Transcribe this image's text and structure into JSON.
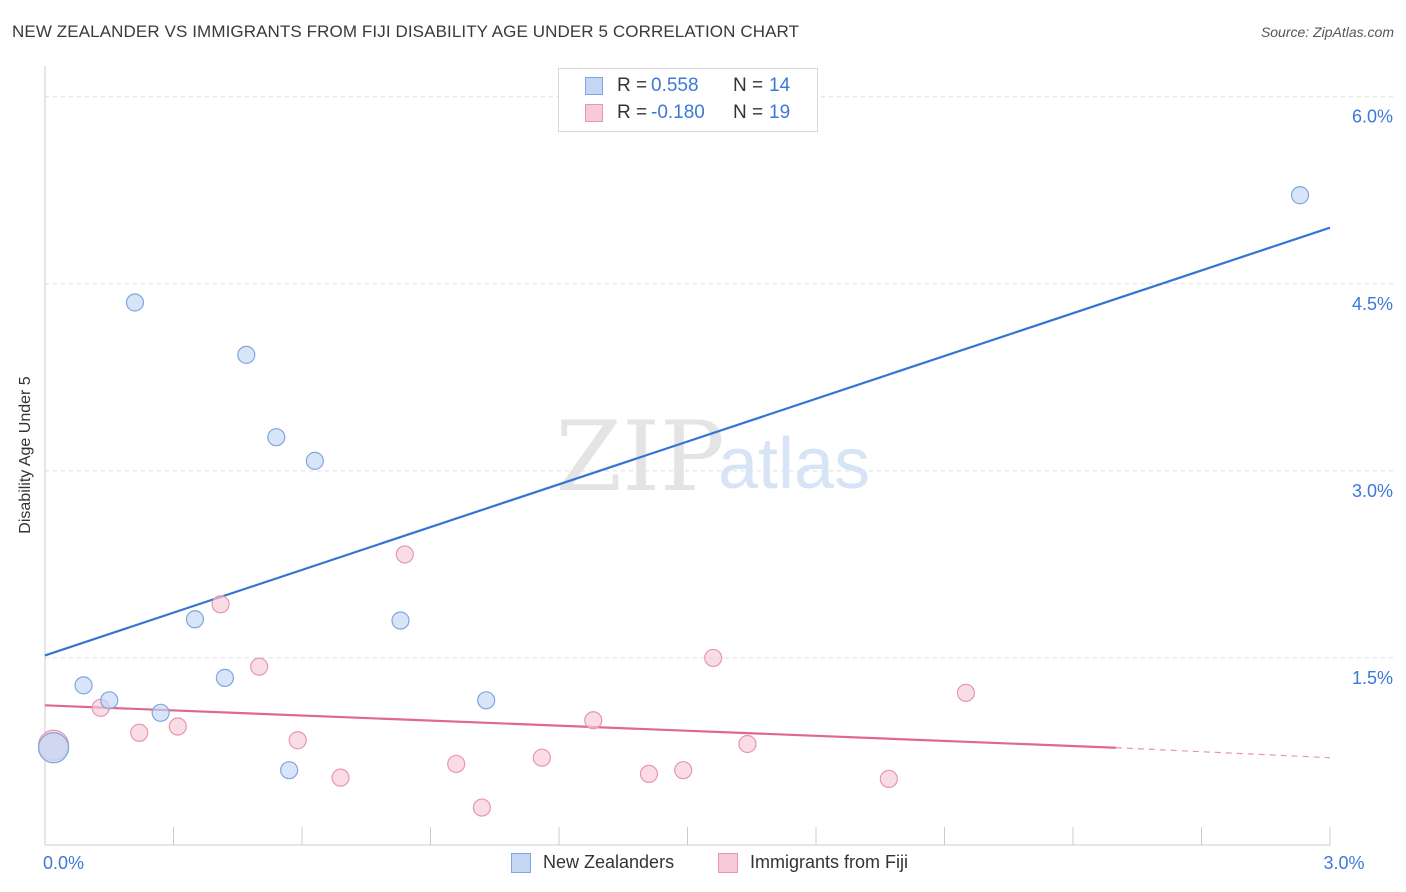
{
  "title": "NEW ZEALANDER VS IMMIGRANTS FROM FIJI DISABILITY AGE UNDER 5 CORRELATION CHART",
  "source": "Source: ZipAtlas.com",
  "colors": {
    "blue_fill": "#c3d7f5",
    "blue_stroke": "#7fa6de",
    "blue_line": "#3374d4",
    "pink_fill": "#f8c9d6",
    "pink_stroke": "#e897b0",
    "pink_line": "#e0688f",
    "grid": "#dddddd",
    "axis_label": "#3d78d8"
  },
  "legend": {
    "rows": [
      {
        "r_label": "R =",
        "r_value": "0.558",
        "n_label": "N =",
        "n_value": "14",
        "color": "#c3d7f5",
        "border": "#7fa6de"
      },
      {
        "r_label": "R =",
        "r_value": "-0.180",
        "n_label": "N =",
        "n_value": "19",
        "color": "#f8c9d6",
        "border": "#e897b0"
      }
    ]
  },
  "bottom_legend": {
    "items": [
      {
        "label": "New Zealanders",
        "color": "#c3d7f5",
        "border": "#7fa6de"
      },
      {
        "label": "Immigrants from Fiji",
        "color": "#f8c9d6",
        "border": "#e897b0"
      }
    ]
  },
  "watermark": {
    "zip": "ZIP",
    "atlas": "atlas"
  },
  "chart_data": {
    "type": "scatter",
    "title": "NEW ZEALANDER VS IMMIGRANTS FROM FIJI DISABILITY AGE UNDER 5 CORRELATION CHART",
    "xlabel": "",
    "ylabel": "Disability Age Under 5",
    "xlim": [
      0,
      3.0
    ],
    "ylim": [
      0,
      6.15
    ],
    "x_tick_labels": [
      {
        "value": 0,
        "label": "0.0%"
      },
      {
        "value": 3.0,
        "label": "3.0%"
      }
    ],
    "y_tick_labels": [
      {
        "value": 1.5,
        "label": "1.5%"
      },
      {
        "value": 3.0,
        "label": "3.0%"
      },
      {
        "value": 4.5,
        "label": "4.5%"
      },
      {
        "value": 6.0,
        "label": "6.0%"
      }
    ],
    "series": [
      {
        "name": "New Zealanders",
        "r": 0.558,
        "n": 14,
        "points": [
          {
            "x": 0.02,
            "y": 0.78,
            "big": true
          },
          {
            "x": 0.09,
            "y": 1.28
          },
          {
            "x": 0.15,
            "y": 1.16
          },
          {
            "x": 0.27,
            "y": 1.06
          },
          {
            "x": 0.21,
            "y": 4.35
          },
          {
            "x": 0.35,
            "y": 1.81
          },
          {
            "x": 0.42,
            "y": 1.34
          },
          {
            "x": 0.47,
            "y": 3.93
          },
          {
            "x": 0.54,
            "y": 3.27
          },
          {
            "x": 0.57,
            "y": 0.6
          },
          {
            "x": 0.63,
            "y": 3.08
          },
          {
            "x": 0.83,
            "y": 1.8
          },
          {
            "x": 1.03,
            "y": 1.16
          },
          {
            "x": 2.93,
            "y": 5.21
          }
        ],
        "trend": {
          "x0": 0,
          "y0": 1.52,
          "x1": 3.0,
          "y1": 4.95
        }
      },
      {
        "name": "Immigrants from Fiji",
        "r": -0.18,
        "n": 19,
        "points": [
          {
            "x": 0.02,
            "y": 0.8,
            "big": true
          },
          {
            "x": 0.13,
            "y": 1.1
          },
          {
            "x": 0.22,
            "y": 0.9
          },
          {
            "x": 0.31,
            "y": 0.95
          },
          {
            "x": 0.41,
            "y": 1.93
          },
          {
            "x": 0.5,
            "y": 1.43
          },
          {
            "x": 0.59,
            "y": 0.84
          },
          {
            "x": 0.69,
            "y": 0.54
          },
          {
            "x": 0.84,
            "y": 2.33
          },
          {
            "x": 0.96,
            "y": 0.65
          },
          {
            "x": 1.02,
            "y": 0.3
          },
          {
            "x": 1.16,
            "y": 0.7
          },
          {
            "x": 1.28,
            "y": 1.0
          },
          {
            "x": 1.41,
            "y": 0.57
          },
          {
            "x": 1.49,
            "y": 0.6
          },
          {
            "x": 1.56,
            "y": 1.5
          },
          {
            "x": 1.64,
            "y": 0.81
          },
          {
            "x": 1.97,
            "y": 0.53
          },
          {
            "x": 2.15,
            "y": 1.22
          }
        ],
        "trend": {
          "x0": 0,
          "y0": 1.12,
          "x1": 2.5,
          "y1": 0.78
        },
        "trend_dashed": {
          "x0": 2.5,
          "y0": 0.78,
          "x1": 3.0,
          "y1": 0.7
        }
      }
    ]
  }
}
